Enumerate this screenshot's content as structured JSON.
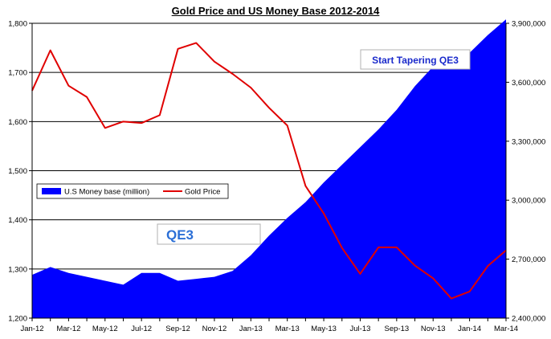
{
  "chart_data": {
    "type": "area",
    "title": "Gold Price and US Money Base 2012-2014",
    "x_tick_labels": [
      "Jan-12",
      "Mar-12",
      "May-12",
      "Jul-12",
      "Sep-12",
      "Nov-12",
      "Jan-13",
      "Mar-13",
      "May-13",
      "Jul-13",
      "Sep-13",
      "Nov-13",
      "Jan-14",
      "Mar-14"
    ],
    "x": [
      "Jan-12",
      "Feb-12",
      "Mar-12",
      "Apr-12",
      "May-12",
      "Jun-12",
      "Jul-12",
      "Aug-12",
      "Sep-12",
      "Oct-12",
      "Nov-12",
      "Dec-12",
      "Jan-13",
      "Feb-13",
      "Mar-13",
      "Apr-13",
      "May-13",
      "Jun-13",
      "Jul-13",
      "Aug-13",
      "Sep-13",
      "Oct-13",
      "Nov-13",
      "Dec-13",
      "Jan-14",
      "Feb-14",
      "Mar-14"
    ],
    "left_axis": {
      "range": [
        1200,
        1800
      ],
      "ticks": [
        "1,200",
        "1,300",
        "1,400",
        "1,500",
        "1,600",
        "1,700",
        "1,800"
      ]
    },
    "right_axis": {
      "range": [
        2400000,
        3900000
      ],
      "ticks": [
        "2,400,000",
        "2,700,000",
        "3,000,000",
        "3,300,000",
        "3,600,000",
        "3,900,000"
      ]
    },
    "gridlines": "horizontal",
    "legend_position": "middle-left",
    "series": [
      {
        "name": "U.S Money base (million)",
        "type": "area",
        "axis": "right",
        "color": "#0000ff",
        "values": [
          2620000,
          2660000,
          2630000,
          2610000,
          2590000,
          2570000,
          2630000,
          2630000,
          2590000,
          2600000,
          2610000,
          2640000,
          2720000,
          2820000,
          2910000,
          2990000,
          3090000,
          3180000,
          3270000,
          3360000,
          3460000,
          3580000,
          3680000,
          3720000,
          3750000,
          3840000,
          3920000
        ]
      },
      {
        "name": "Gold Price",
        "type": "line",
        "axis": "left",
        "color": "#e00000",
        "values": [
          1663,
          1745,
          1673,
          1650,
          1587,
          1600,
          1597,
          1613,
          1748,
          1760,
          1722,
          1697,
          1669,
          1628,
          1592,
          1469,
          1413,
          1343,
          1290,
          1344,
          1344,
          1307,
          1281,
          1240,
          1254,
          1306,
          1338
        ]
      }
    ],
    "annotations": [
      "Start Tapering QE3",
      "QE3"
    ]
  }
}
